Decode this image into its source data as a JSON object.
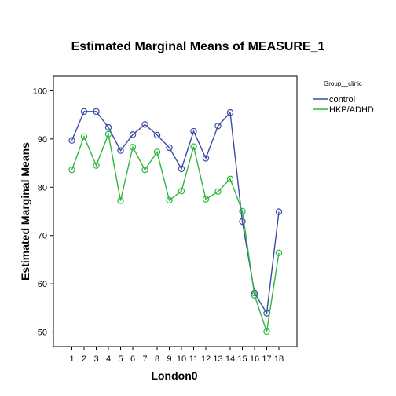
{
  "chart_data": {
    "type": "line",
    "title": "Estimated Marginal Means of MEASURE_1",
    "xlabel": "London0",
    "ylabel": "Estimated Marginal Means",
    "categories": [
      "1",
      "2",
      "3",
      "4",
      "5",
      "6",
      "7",
      "8",
      "9",
      "10",
      "11",
      "12",
      "13",
      "14",
      "15",
      "16",
      "17",
      "18"
    ],
    "ylim": [
      47,
      103
    ],
    "yticks": [
      50,
      60,
      70,
      80,
      90,
      100
    ],
    "grid": false,
    "legend_title": "Group__clinic",
    "legend_position": "right",
    "series": [
      {
        "name": "control",
        "color": "#3b4ba6",
        "values": [
          89.7,
          95.7,
          95.7,
          92.4,
          87.6,
          90.9,
          93.0,
          90.8,
          88.2,
          83.8,
          91.6,
          86.0,
          92.7,
          95.5,
          72.9,
          58.1,
          53.9,
          74.9
        ]
      },
      {
        "name": "HKP/ADHD",
        "color": "#2db83d",
        "values": [
          83.6,
          90.5,
          84.5,
          91.0,
          77.2,
          88.3,
          83.6,
          87.3,
          77.3,
          79.2,
          88.4,
          77.5,
          79.1,
          81.7,
          75.0,
          57.6,
          50.1,
          66.4
        ]
      }
    ]
  }
}
